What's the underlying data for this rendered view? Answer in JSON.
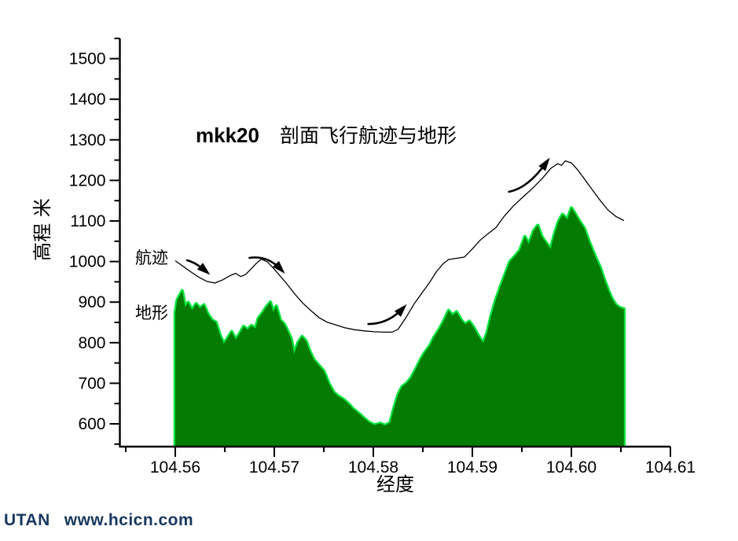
{
  "page": {
    "background": "#ffffff"
  },
  "footer": {
    "brand": "UTAN",
    "url": "www.hcicn.com",
    "color": "#17375e"
  },
  "chart_data": {
    "type": "area",
    "subtype": "terrain profile area + flight track line",
    "title": {
      "prefix": "mkk20",
      "text": "剖面飞行航迹与地形"
    },
    "xlabel": "经度",
    "ylabel": "高程 米",
    "xlim": [
      104.5544,
      104.61
    ],
    "ylim": [
      544,
      1550
    ],
    "grid": false,
    "legend_position": "inline-text-labels",
    "x_ticks": {
      "major": [
        104.56,
        104.57,
        104.58,
        104.59,
        104.6,
        104.61
      ],
      "labels": [
        "104.56",
        "104.57",
        "104.58",
        "104.59",
        "104.60",
        "104.61"
      ],
      "minor": [
        104.555,
        104.565,
        104.575,
        104.585,
        104.595,
        104.605
      ]
    },
    "y_ticks": {
      "major": [
        600,
        700,
        800,
        900,
        1000,
        1100,
        1200,
        1300,
        1400,
        1500
      ],
      "labels": [
        "600",
        "700",
        "800",
        "900",
        "1000",
        "1100",
        "1200",
        "1300",
        "1400",
        "1500"
      ],
      "minor": [
        550,
        650,
        750,
        850,
        950,
        1050,
        1150,
        1250,
        1350,
        1450,
        1550
      ]
    },
    "colors": {
      "terrain_fill": "#047c04",
      "terrain_edge": "#00e63c",
      "track_line": "#000000",
      "axis": "#000000"
    },
    "series": [
      {
        "name": "地形",
        "type": "area",
        "points": [
          [
            104.56,
            872
          ],
          [
            104.5602,
            905
          ],
          [
            104.5607,
            928
          ],
          [
            104.561,
            888
          ],
          [
            104.5613,
            899
          ],
          [
            104.5617,
            880
          ],
          [
            104.5621,
            896
          ],
          [
            104.5625,
            885
          ],
          [
            104.5629,
            893
          ],
          [
            104.5633,
            870
          ],
          [
            104.5637,
            856
          ],
          [
            104.5641,
            850
          ],
          [
            104.5645,
            820
          ],
          [
            104.5649,
            797
          ],
          [
            104.5653,
            812
          ],
          [
            104.5657,
            827
          ],
          [
            104.5661,
            808
          ],
          [
            104.5665,
            822
          ],
          [
            104.5669,
            840
          ],
          [
            104.5673,
            832
          ],
          [
            104.5677,
            842
          ],
          [
            104.5681,
            835
          ],
          [
            104.5684,
            860
          ],
          [
            104.5688,
            873
          ],
          [
            104.5692,
            888
          ],
          [
            104.5696,
            900
          ],
          [
            104.5699,
            876
          ],
          [
            104.5702,
            890
          ],
          [
            104.5706,
            856
          ],
          [
            104.571,
            846
          ],
          [
            104.5714,
            826
          ],
          [
            104.5717,
            810
          ],
          [
            104.572,
            772
          ],
          [
            104.5724,
            800
          ],
          [
            104.5728,
            815
          ],
          [
            104.5732,
            804
          ],
          [
            104.5736,
            778
          ],
          [
            104.574,
            758
          ],
          [
            104.5745,
            744
          ],
          [
            104.575,
            730
          ],
          [
            104.5755,
            700
          ],
          [
            104.576,
            678
          ],
          [
            104.5765,
            667
          ],
          [
            104.577,
            660
          ],
          [
            104.5775,
            649
          ],
          [
            104.578,
            636
          ],
          [
            104.5786,
            624
          ],
          [
            104.5791,
            613
          ],
          [
            104.5796,
            603
          ],
          [
            104.5801,
            597
          ],
          [
            104.5807,
            601
          ],
          [
            104.5812,
            596
          ],
          [
            104.5817,
            603
          ],
          [
            104.5821,
            640
          ],
          [
            104.5825,
            672
          ],
          [
            104.5829,
            691
          ],
          [
            104.5834,
            701
          ],
          [
            104.5838,
            713
          ],
          [
            104.5843,
            735
          ],
          [
            104.5848,
            760
          ],
          [
            104.5852,
            776
          ],
          [
            104.5857,
            792
          ],
          [
            104.5861,
            812
          ],
          [
            104.5866,
            831
          ],
          [
            104.5871,
            853
          ],
          [
            104.5876,
            879
          ],
          [
            104.588,
            867
          ],
          [
            104.5884,
            876
          ],
          [
            104.5889,
            855
          ],
          [
            104.5893,
            845
          ],
          [
            104.5897,
            853
          ],
          [
            104.5902,
            835
          ],
          [
            104.5906,
            817
          ],
          [
            104.5911,
            799
          ],
          [
            104.5915,
            825
          ],
          [
            104.5919,
            866
          ],
          [
            104.5924,
            908
          ],
          [
            104.5929,
            942
          ],
          [
            104.5933,
            968
          ],
          [
            104.5938,
            1000
          ],
          [
            104.5943,
            1013
          ],
          [
            104.5948,
            1028
          ],
          [
            104.5953,
            1061
          ],
          [
            104.5957,
            1043
          ],
          [
            104.5962,
            1076
          ],
          [
            104.5966,
            1089
          ],
          [
            104.597,
            1062
          ],
          [
            104.5974,
            1048
          ],
          [
            104.5979,
            1031
          ],
          [
            104.5983,
            1068
          ],
          [
            104.5987,
            1098
          ],
          [
            104.5991,
            1116
          ],
          [
            104.5996,
            1104
          ],
          [
            104.6,
            1132
          ],
          [
            104.6004,
            1117
          ],
          [
            104.6008,
            1100
          ],
          [
            104.6013,
            1082
          ],
          [
            104.6017,
            1055
          ],
          [
            104.6021,
            1030
          ],
          [
            104.6025,
            1007
          ],
          [
            104.6029,
            986
          ],
          [
            104.6033,
            957
          ],
          [
            104.6037,
            931
          ],
          [
            104.6041,
            908
          ],
          [
            104.6045,
            893
          ],
          [
            104.6049,
            886
          ],
          [
            104.6053,
            883
          ]
        ]
      },
      {
        "name": "航迹",
        "type": "line",
        "points": [
          [
            104.56,
            1002
          ],
          [
            104.5608,
            988
          ],
          [
            104.5616,
            974
          ],
          [
            104.5624,
            961
          ],
          [
            104.5632,
            951
          ],
          [
            104.564,
            947
          ],
          [
            104.5648,
            955
          ],
          [
            104.5656,
            966
          ],
          [
            104.5661,
            971
          ],
          [
            104.5666,
            963
          ],
          [
            104.5671,
            968
          ],
          [
            104.5677,
            983
          ],
          [
            104.5682,
            996
          ],
          [
            104.5687,
            1006
          ],
          [
            104.5693,
            999
          ],
          [
            104.5699,
            984
          ],
          [
            104.5705,
            967
          ],
          [
            104.5713,
            944
          ],
          [
            104.5721,
            919
          ],
          [
            104.5729,
            897
          ],
          [
            104.5737,
            879
          ],
          [
            104.5745,
            862
          ],
          [
            104.5753,
            851
          ],
          [
            104.5762,
            844
          ],
          [
            104.5771,
            837
          ],
          [
            104.5781,
            832
          ],
          [
            104.5791,
            829
          ],
          [
            104.5801,
            827
          ],
          [
            104.5811,
            826
          ],
          [
            104.5819,
            826
          ],
          [
            104.5825,
            833
          ],
          [
            104.5833,
            862
          ],
          [
            104.5841,
            895
          ],
          [
            104.5849,
            922
          ],
          [
            104.5857,
            949
          ],
          [
            104.5864,
            976
          ],
          [
            104.5871,
            996
          ],
          [
            104.5876,
            1005
          ],
          [
            104.5884,
            1008
          ],
          [
            104.5892,
            1011
          ],
          [
            104.59,
            1031
          ],
          [
            104.5908,
            1053
          ],
          [
            104.5916,
            1069
          ],
          [
            104.5924,
            1084
          ],
          [
            104.5932,
            1111
          ],
          [
            104.5941,
            1136
          ],
          [
            104.5951,
            1159
          ],
          [
            104.5961,
            1181
          ],
          [
            104.5971,
            1206
          ],
          [
            104.5979,
            1229
          ],
          [
            104.5986,
            1241
          ],
          [
            104.599,
            1237
          ],
          [
            104.5994,
            1248
          ],
          [
            104.6,
            1243
          ],
          [
            104.6006,
            1227
          ],
          [
            104.6013,
            1204
          ],
          [
            104.6021,
            1177
          ],
          [
            104.6029,
            1151
          ],
          [
            104.6037,
            1127
          ],
          [
            104.6045,
            1111
          ],
          [
            104.6053,
            1101
          ]
        ]
      }
    ],
    "annotations": {
      "track_label": {
        "text": "航迹",
        "lon": 104.5579,
        "elev": 1014
      },
      "terrain_label": {
        "text": "地形",
        "lon": 104.5579,
        "elev": 877
      },
      "arrows": [
        {
          "from": [
            104.5612,
            1003
          ],
          "ctrl": [
            104.5621,
            997
          ],
          "to": [
            104.5631,
            976
          ]
        },
        {
          "from": [
            104.5675,
            1009
          ],
          "ctrl": [
            104.5693,
            1016
          ],
          "to": [
            104.5707,
            980
          ]
        },
        {
          "from": [
            104.5795,
            846
          ],
          "ctrl": [
            104.5815,
            846
          ],
          "to": [
            104.583,
            885
          ]
        },
        {
          "from": [
            104.5937,
            1172
          ],
          "ctrl": [
            104.5956,
            1180
          ],
          "to": [
            104.5975,
            1245
          ]
        }
      ]
    }
  }
}
